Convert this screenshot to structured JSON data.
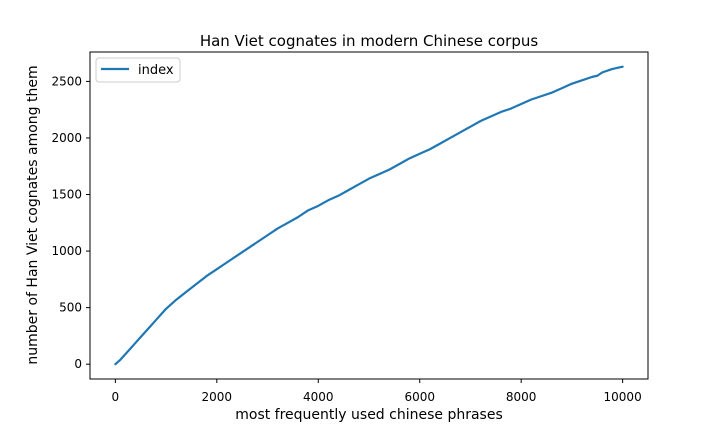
{
  "chart_data": {
    "type": "line",
    "title": "Han Viet cognates in modern Chinese corpus",
    "xlabel": "most frequently used chinese phrases",
    "ylabel": "number of Han Viet cognates among them",
    "xlim": [
      -500,
      10500
    ],
    "ylim": [
      -131,
      2760
    ],
    "xticks": [
      0,
      2000,
      4000,
      6000,
      8000,
      10000
    ],
    "xtick_labels": [
      "0",
      "2000",
      "4000",
      "6000",
      "8000",
      "10000"
    ],
    "yticks": [
      0,
      500,
      1000,
      1500,
      2000,
      2500
    ],
    "ytick_labels": [
      "0",
      "500",
      "1000",
      "1500",
      "2000",
      "2500"
    ],
    "grid": false,
    "legend": {
      "position": "upper left",
      "entries": [
        "index"
      ]
    },
    "series": [
      {
        "name": "index",
        "color": "#1f77b4",
        "x": [
          0,
          100,
          200,
          300,
          400,
          500,
          600,
          700,
          800,
          900,
          1000,
          1200,
          1400,
          1600,
          1800,
          2000,
          2200,
          2400,
          2600,
          2800,
          3000,
          3200,
          3400,
          3600,
          3800,
          4000,
          4200,
          4400,
          4600,
          4800,
          5000,
          5200,
          5400,
          5600,
          5800,
          6000,
          6200,
          6400,
          6600,
          6800,
          7000,
          7200,
          7400,
          7600,
          7800,
          8000,
          8200,
          8400,
          8600,
          8800,
          9000,
          9200,
          9400,
          9500,
          9600,
          9800,
          10000
        ],
        "y": [
          0,
          40,
          90,
          140,
          190,
          240,
          290,
          340,
          390,
          440,
          490,
          570,
          640,
          710,
          780,
          840,
          900,
          960,
          1020,
          1080,
          1140,
          1200,
          1250,
          1300,
          1360,
          1400,
          1450,
          1490,
          1540,
          1590,
          1640,
          1680,
          1720,
          1770,
          1820,
          1860,
          1900,
          1950,
          2000,
          2050,
          2100,
          2150,
          2190,
          2230,
          2260,
          2300,
          2340,
          2370,
          2400,
          2440,
          2480,
          2510,
          2540,
          2550,
          2580,
          2610,
          2630
        ]
      }
    ]
  }
}
